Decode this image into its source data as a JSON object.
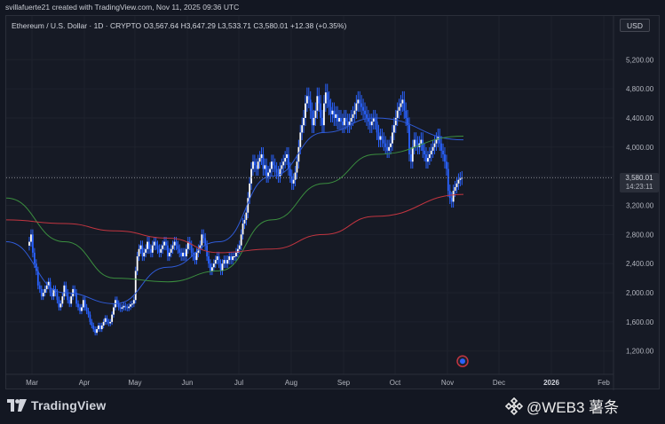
{
  "header": {
    "author_line": "svillafuerte21 created with TradingView.com, Nov 11, 2025 09:36 UTC"
  },
  "legend": {
    "symbol": "Ethereum / U.S. Dollar · 1D · CRYPTO",
    "open": "O3,567.64",
    "high": "H3,647.29",
    "low": "L3,533.71",
    "close": "C3,580.01",
    "change": "+12.38 (+0.35%)"
  },
  "currency_button": "USD",
  "price_label": {
    "price": "3,580.01",
    "countdown": "14:23:11"
  },
  "footer": {
    "brand": "TradingView",
    "watermark": "@WEB3 薯条"
  },
  "colors": {
    "background": "#161a25",
    "candle": "#ffffff",
    "candle_wick": "#2962ff",
    "ma_blue": "#2f5bd8",
    "ma_green": "#3b8f3f",
    "ma_red": "#c23540",
    "grid": "#1e222d",
    "text": "#b2b5be"
  },
  "chart_data": {
    "type": "candlestick",
    "title": "Ethereum / U.S. Dollar · 1D · CRYPTO",
    "y_unit": "USD",
    "ylim": [
      880,
      5800
    ],
    "y_ticks": [
      1200,
      1600,
      2000,
      2400,
      2800,
      3200,
      3600,
      4000,
      4400,
      4800,
      5200
    ],
    "y_tick_labels": [
      "1,200.00",
      "1,600.00",
      "2,000.00",
      "2,400.00",
      "2,800.00",
      "3,200.00",
      "3,600.00",
      "4,000.00",
      "4,400.00",
      "4,800.00",
      "5,200.00"
    ],
    "x_tick_labels": [
      "Mar",
      "Apr",
      "May",
      "Jun",
      "Jul",
      "Aug",
      "Sep",
      "Oct",
      "Nov",
      "Dec",
      "2026",
      "Feb"
    ],
    "bold_x_ticks": [
      "2026"
    ],
    "last_price": 3580.01,
    "close_series": [
      {
        "month": "Mar",
        "values": [
          2700,
          2800,
          2550,
          2400,
          2300,
          2100,
          2050,
          1950,
          2000,
          2050,
          2100,
          2150,
          2000,
          1950,
          2050,
          2000,
          1900,
          1800,
          1850,
          1950,
          2100,
          2000,
          1900,
          1850,
          1950,
          2050,
          2000,
          1850,
          1800,
          1750
        ]
      },
      {
        "month": "Apr",
        "values": [
          1800,
          1900,
          1800,
          1750,
          1700,
          1600,
          1550,
          1500,
          1450,
          1500,
          1550,
          1500,
          1550,
          1600,
          1650,
          1600,
          1580,
          1600,
          1700,
          1800,
          1900,
          1850,
          1800,
          1780,
          1800,
          1820,
          1800,
          1790,
          1810,
          1840
        ]
      },
      {
        "month": "May",
        "values": [
          1850,
          1900,
          2300,
          2500,
          2600,
          2650,
          2500,
          2550,
          2600,
          2700,
          2600,
          2550,
          2650,
          2700,
          2650,
          2600,
          2550,
          2600,
          2650,
          2700,
          2650,
          2500,
          2550,
          2600,
          2650,
          2700,
          2650,
          2600,
          2550,
          2500,
          2550
        ]
      },
      {
        "month": "Jun",
        "values": [
          2500,
          2600,
          2700,
          2650,
          2550,
          2500,
          2450,
          2550,
          2600,
          2650,
          2800,
          2750,
          2650,
          2500,
          2400,
          2300,
          2350,
          2400,
          2450,
          2500,
          2400,
          2300,
          2400,
          2450,
          2400,
          2450,
          2500,
          2450,
          2500,
          2500
        ]
      },
      {
        "month": "Jul",
        "values": [
          2550,
          2600,
          2650,
          2800,
          2950,
          3000,
          3100,
          3300,
          3500,
          3700,
          3800,
          3750,
          3700,
          3800,
          3850,
          3900,
          3700,
          3750,
          3600,
          3650,
          3700,
          3800,
          3750,
          3700,
          3650,
          3600,
          3700,
          3750,
          3800,
          3850,
          3900
        ]
      },
      {
        "month": "Aug",
        "values": [
          3700,
          3600,
          3500,
          3550,
          3650,
          3800,
          4000,
          4200,
          4300,
          4400,
          4600,
          4700,
          4650,
          4500,
          4300,
          4400,
          4500,
          4700,
          4600,
          4400,
          4300,
          4600,
          4750,
          4650,
          4550,
          4450,
          4500,
          4400,
          4450,
          4350,
          4400
        ]
      },
      {
        "month": "Sep",
        "values": [
          4350,
          4300,
          4400,
          4350,
          4300,
          4350,
          4400,
          4450,
          4500,
          4600,
          4650,
          4600,
          4550,
          4500,
          4450,
          4400,
          4350,
          4300,
          4350,
          4400,
          4350,
          4200,
          4100,
          4150,
          4100,
          4050,
          4000,
          3950,
          4000,
          4050
        ]
      },
      {
        "month": "Oct",
        "values": [
          4200,
          4300,
          4400,
          4500,
          4550,
          4600,
          4650,
          4500,
          4400,
          4300,
          3900,
          3800,
          4000,
          4100,
          4050,
          4000,
          4050,
          4100,
          3950,
          3900,
          3800,
          3850,
          3900,
          3950,
          4000,
          4050,
          4100,
          4150,
          4050,
          3950,
          3900
        ]
      },
      {
        "month": "Nov",
        "values": [
          3800,
          3700,
          3400,
          3300,
          3250,
          3400,
          3450,
          3500,
          3550,
          3567.64,
          3580.01
        ]
      }
    ],
    "moving_averages": [
      {
        "color": "blue",
        "points": [
          [
            "Mar",
            2700
          ],
          [
            "Apr",
            2000
          ],
          [
            "May",
            1850
          ],
          [
            "Jun",
            2350
          ],
          [
            "Jul",
            2700
          ],
          [
            "Aug",
            3600
          ],
          [
            "Sep",
            4200
          ],
          [
            "Oct",
            4400
          ],
          [
            "Nov",
            4100
          ]
        ]
      },
      {
        "color": "green",
        "points": [
          [
            "Mar",
            3300
          ],
          [
            "Apr",
            2700
          ],
          [
            "May",
            2200
          ],
          [
            "Jun",
            2150
          ],
          [
            "Jul",
            2300
          ],
          [
            "Aug",
            3000
          ],
          [
            "Sep",
            3500
          ],
          [
            "Oct",
            3900
          ],
          [
            "Nov",
            4150
          ]
        ]
      },
      {
        "color": "red",
        "points": [
          [
            "Mar",
            3000
          ],
          [
            "Apr",
            2950
          ],
          [
            "May",
            2850
          ],
          [
            "Jun",
            2750
          ],
          [
            "Jul",
            2550
          ],
          [
            "Aug",
            2600
          ],
          [
            "Sep",
            2800
          ],
          [
            "Oct",
            3050
          ],
          [
            "Nov",
            3350
          ]
        ]
      }
    ]
  }
}
